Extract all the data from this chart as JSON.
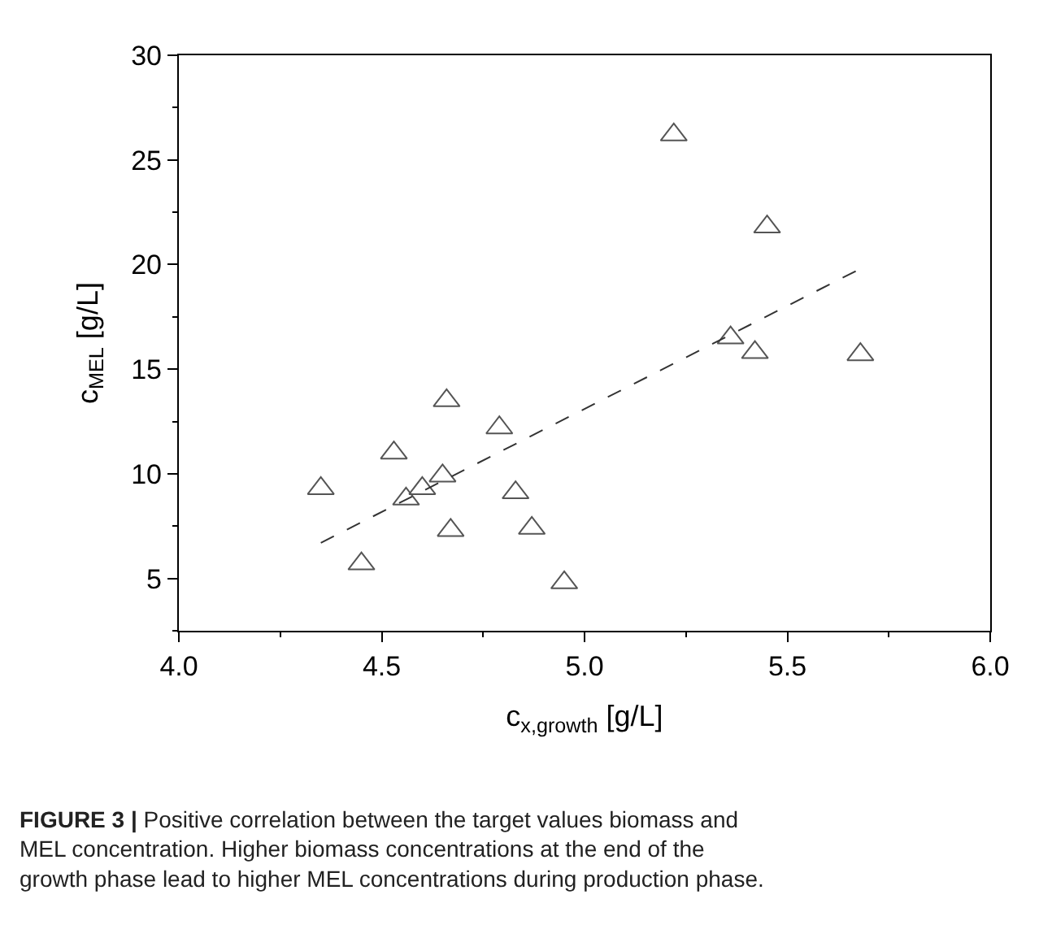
{
  "chart_data": {
    "type": "scatter",
    "xlabel": "c$_{x,growth}$ [g/L]",
    "ylabel": "c$_{MEL}$ [g/L]",
    "series": [
      {
        "color": "#555555",
        "marker": "triangle",
        "x": [
          4.35,
          4.45,
          4.53,
          4.56,
          4.6,
          4.65,
          4.66,
          4.67,
          4.79,
          4.83,
          4.87,
          4.95,
          5.22,
          5.36,
          5.42,
          5.45,
          5.68
        ],
        "values": [
          9.3,
          5.7,
          11.0,
          8.8,
          9.3,
          9.9,
          13.5,
          7.3,
          12.2,
          9.1,
          7.4,
          4.8,
          26.2,
          16.5,
          15.8,
          21.8,
          15.7
        ]
      },
      {
        "type": "line",
        "color": "#333333",
        "line_style": "dashed",
        "x": [
          4.35,
          5.68
        ],
        "values": [
          6.7,
          19.8
        ]
      }
    ],
    "xlim": [
      4.0,
      6.0
    ],
    "ylim": [
      2.5,
      30
    ],
    "xticks": [
      {
        "value": 4.0,
        "label": "4.0"
      },
      {
        "value": 4.5,
        "label": "4.5"
      },
      {
        "value": 5.0,
        "label": "5.0"
      },
      {
        "value": 5.5,
        "label": "5.5"
      },
      {
        "value": 6.0,
        "label": "6.0"
      }
    ],
    "yticks": [
      5,
      10,
      15,
      20,
      25,
      30
    ],
    "annotations": [
      "FIGURE 3 | Positive correlation between the target values biomass and MEL concentration. Higher biomass concentrations at the end of the growth phase lead to higher MEL concentrations during production phase."
    ]
  }
}
